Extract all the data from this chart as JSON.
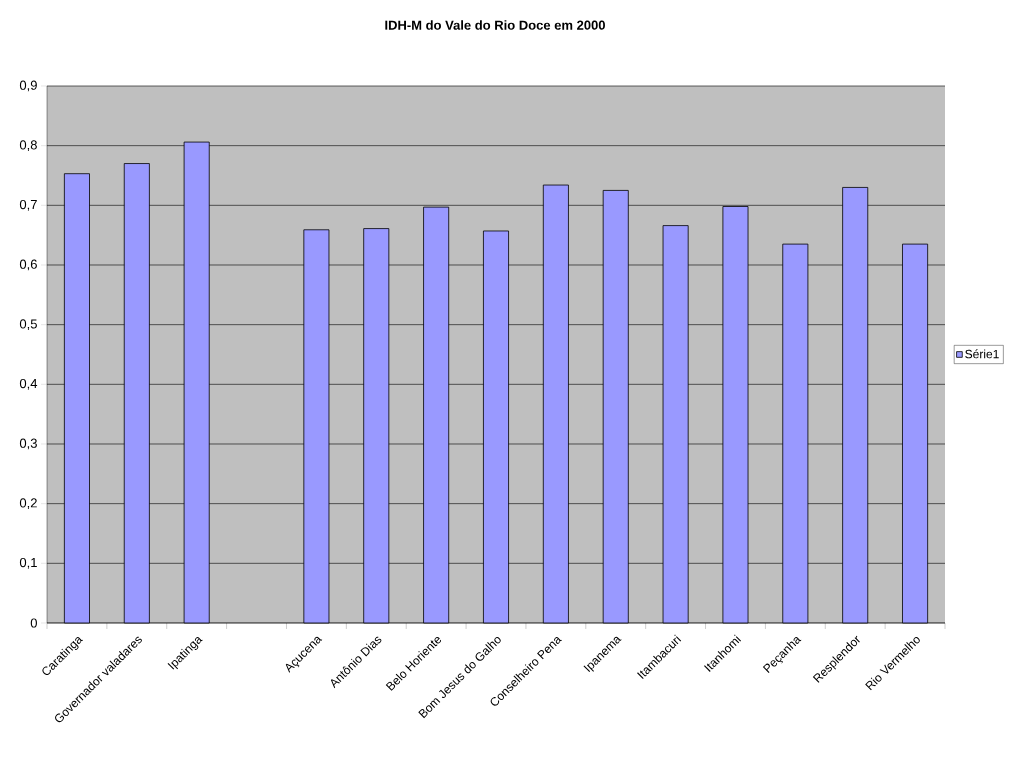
{
  "chart_data": {
    "type": "bar",
    "title": "IDH-M do Vale do Rio Doce em 2000",
    "categories": [
      "Caratinga",
      "Governador valadares",
      "Ipatinga",
      null,
      "Açucena",
      "Antônio Dias",
      "Belo Horiente",
      "Bom Jesus do Galho",
      "Conselheiro Pena",
      "Ipanema",
      "Itambacuri",
      "Itanhomi",
      "Peçanha",
      "Resplendor",
      "Rio Vermelho"
    ],
    "series": [
      {
        "name": "Série1",
        "color": "#9999ff",
        "values": [
          0.753,
          0.77,
          0.806,
          null,
          0.659,
          0.661,
          0.697,
          0.657,
          0.734,
          0.725,
          0.666,
          0.698,
          0.635,
          0.73,
          0.635
        ]
      }
    ],
    "ylim": [
      0,
      0.9
    ],
    "yticks": [
      0,
      {
        "value": 0.1,
        "label": "0,1"
      },
      {
        "value": 0.2,
        "label": "0,2"
      },
      {
        "value": 0.3,
        "label": "0,3"
      },
      {
        "value": 0.4,
        "label": "0,4"
      },
      {
        "value": 0.5,
        "label": "0,5"
      },
      {
        "value": 0.6,
        "label": "0,6"
      },
      {
        "value": 0.7,
        "label": "0,7"
      },
      {
        "value": 0.8,
        "label": "0,8"
      },
      {
        "value": 0.9,
        "label": "0,9"
      }
    ],
    "grid": "y",
    "legend": "right"
  }
}
